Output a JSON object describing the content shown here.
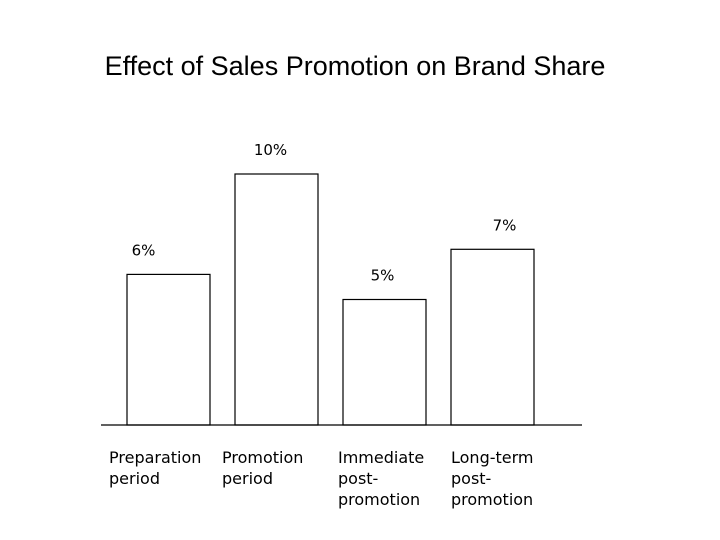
{
  "title": "Effect of Sales Promotion on Brand Share",
  "chart_data": {
    "type": "bar",
    "title": "Effect of Sales Promotion on Brand Share",
    "xlabel": "",
    "ylabel": "",
    "categories": [
      "Preparation\nperiod",
      "Promotion\nperiod",
      "Immediate\npost-\npromotion",
      "Long-term\npost-\npromotion"
    ],
    "values": [
      6,
      10,
      5,
      7
    ],
    "data_labels": [
      "6%",
      "10%",
      "5%",
      "7%"
    ],
    "ylim": [
      0,
      10.5
    ],
    "grid": false,
    "legend": "none",
    "colors": {
      "bar_fill": "#ffffff",
      "bar_stroke": "#000000",
      "axis": "#000000"
    }
  }
}
